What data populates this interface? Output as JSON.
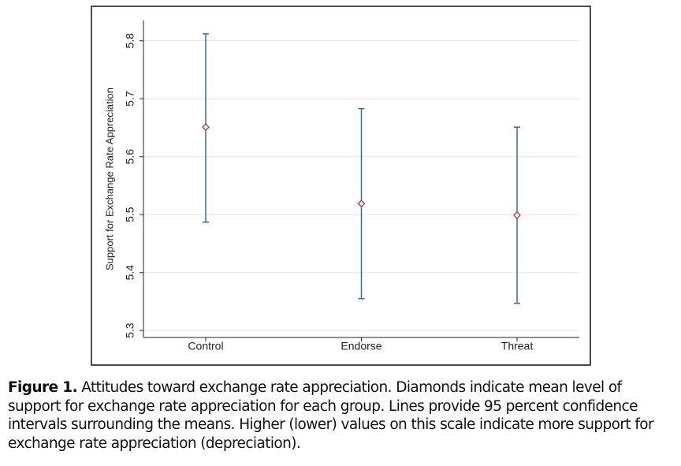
{
  "chart_data": {
    "type": "errorbar",
    "y_label": "Support for Exchange Rate Appreciation",
    "categories": [
      "Control",
      "Endorse",
      "Threat"
    ],
    "values": [
      5.651,
      5.519,
      5.499
    ],
    "lower": [
      5.487,
      5.355,
      5.347
    ],
    "upper": [
      5.812,
      5.683,
      5.651
    ],
    "line_color": "#3d6e8f",
    "marker_color": "#a33a3a",
    "ylim": [
      5.288,
      5.835
    ],
    "yticks": [
      5.3,
      5.4,
      5.5,
      5.6,
      5.7,
      5.8
    ],
    "grid": true
  },
  "caption": {
    "label": "Figure 1.",
    "text": "Attitudes toward exchange rate appreciation. Diamonds indicate mean level of support for exchange rate appreciation for each group. Lines provide 95 percent confidence intervals surrounding the means. Higher (lower) values on this scale indicate more support for exchange rate appreciation (depreciation)."
  }
}
